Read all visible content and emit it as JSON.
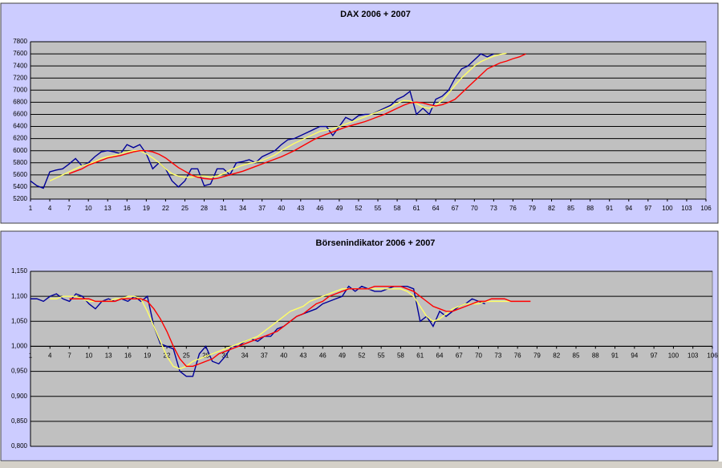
{
  "chart_data": [
    {
      "type": "line",
      "title": "DAX 2006 + 2007",
      "x": [
        1,
        2,
        3,
        4,
        5,
        6,
        7,
        8,
        9,
        10,
        11,
        12,
        13,
        14,
        15,
        16,
        17,
        18,
        19,
        20,
        21,
        22,
        23,
        24,
        25,
        26,
        27,
        28,
        29,
        30,
        31,
        32,
        33,
        34,
        35,
        36,
        37,
        38,
        39,
        40,
        41,
        42,
        43,
        44,
        45,
        46,
        47,
        48,
        49,
        50,
        51,
        52,
        53,
        54,
        55,
        56,
        57,
        58,
        59,
        60,
        61,
        62,
        63,
        64,
        65,
        66,
        67,
        68,
        69,
        70,
        71,
        72,
        73,
        74,
        75,
        76,
        77,
        78
      ],
      "xlim": [
        1,
        106
      ],
      "xticks": [
        1,
        4,
        7,
        10,
        13,
        16,
        19,
        22,
        25,
        28,
        31,
        34,
        37,
        40,
        43,
        46,
        49,
        52,
        55,
        58,
        61,
        64,
        67,
        70,
        73,
        76,
        79,
        82,
        85,
        88,
        91,
        94,
        97,
        100,
        103,
        106
      ],
      "ylim": [
        5200,
        7800
      ],
      "yticks": [
        5200,
        5400,
        5600,
        5800,
        6000,
        6200,
        6400,
        6600,
        6800,
        7000,
        7200,
        7400,
        7600,
        7800
      ],
      "grid": true,
      "series": [
        {
          "color": "#000099",
          "values": [
            5500,
            5420,
            5380,
            5650,
            5680,
            5700,
            5780,
            5870,
            5750,
            5800,
            5900,
            5980,
            6000,
            5980,
            5950,
            6100,
            6050,
            6100,
            5950,
            5700,
            5800,
            5700,
            5500,
            5400,
            5500,
            5700,
            5700,
            5420,
            5450,
            5700,
            5700,
            5600,
            5800,
            5820,
            5850,
            5800,
            5900,
            5950,
            6000,
            6100,
            6180,
            6200,
            6250,
            6300,
            6350,
            6400,
            6400,
            6250,
            6400,
            6550,
            6500,
            6580,
            6600,
            6600,
            6650,
            6700,
            6750,
            6850,
            6900,
            6980,
            6600,
            6700,
            6600,
            6850,
            6900,
            7000,
            7200,
            7350,
            7400,
            7500,
            7600,
            7550,
            7600,
            null,
            null,
            null,
            null,
            null
          ]
        },
        {
          "color": "#ffff66",
          "values": [
            null,
            null,
            null,
            5500,
            5550,
            5600,
            5650,
            5700,
            5750,
            5780,
            5820,
            5870,
            5900,
            5920,
            5950,
            5980,
            6000,
            6000,
            5950,
            5880,
            5800,
            5700,
            5620,
            5580,
            5560,
            5560,
            5580,
            5580,
            5560,
            5580,
            5620,
            5680,
            5720,
            5760,
            5790,
            5810,
            5840,
            5880,
            5930,
            6000,
            6060,
            6120,
            6170,
            6220,
            6270,
            6320,
            6340,
            6360,
            6400,
            6440,
            6480,
            6520,
            6560,
            6600,
            6640,
            6680,
            6720,
            6780,
            6830,
            6820,
            6780,
            6720,
            6700,
            6750,
            6830,
            6950,
            7080,
            7200,
            7300,
            7400,
            7470,
            7520,
            7560,
            7590,
            7610,
            null,
            null,
            null
          ]
        },
        {
          "color": "#ff0000",
          "values": [
            null,
            null,
            null,
            null,
            null,
            null,
            5620,
            5660,
            5700,
            5760,
            5800,
            5840,
            5880,
            5900,
            5920,
            5950,
            5980,
            6000,
            6000,
            5980,
            5940,
            5880,
            5800,
            5720,
            5660,
            5600,
            5560,
            5540,
            5530,
            5540,
            5570,
            5600,
            5630,
            5660,
            5700,
            5740,
            5780,
            5820,
            5860,
            5900,
            5950,
            6000,
            6060,
            6120,
            6180,
            6230,
            6270,
            6310,
            6350,
            6390,
            6420,
            6450,
            6480,
            6520,
            6560,
            6600,
            6650,
            6700,
            6750,
            6790,
            6800,
            6790,
            6760,
            6740,
            6760,
            6800,
            6850,
            6950,
            7050,
            7150,
            7250,
            7350,
            7400,
            7450,
            7480,
            7520,
            7550,
            7600
          ]
        }
      ]
    },
    {
      "type": "line",
      "title": "Börsenindikator 2006 + 2007",
      "x": [
        1,
        2,
        3,
        4,
        5,
        6,
        7,
        8,
        9,
        10,
        11,
        12,
        13,
        14,
        15,
        16,
        17,
        18,
        19,
        20,
        21,
        22,
        23,
        24,
        25,
        26,
        27,
        28,
        29,
        30,
        31,
        32,
        33,
        34,
        35,
        36,
        37,
        38,
        39,
        40,
        41,
        42,
        43,
        44,
        45,
        46,
        47,
        48,
        49,
        50,
        51,
        52,
        53,
        54,
        55,
        56,
        57,
        58,
        59,
        60,
        61,
        62,
        63,
        64,
        65,
        66,
        67,
        68,
        69,
        70,
        71,
        72,
        73,
        74,
        75,
        76,
        77,
        78
      ],
      "xlim": [
        1,
        106
      ],
      "xticks": [
        1,
        4,
        7,
        10,
        13,
        16,
        19,
        22,
        25,
        28,
        31,
        34,
        37,
        40,
        43,
        46,
        49,
        52,
        55,
        58,
        61,
        64,
        67,
        70,
        73,
        76,
        79,
        82,
        85,
        88,
        91,
        94,
        97,
        100,
        103,
        106
      ],
      "ylim": [
        0.8,
        1.15
      ],
      "yticks": [
        {
          "value": 0.8,
          "label": "0,800"
        },
        {
          "value": 0.85,
          "label": "0,850"
        },
        {
          "value": 0.9,
          "label": "0,900"
        },
        {
          "value": 0.95,
          "label": "0,950"
        },
        {
          "value": 1.0,
          "label": "1,000"
        },
        {
          "value": 1.05,
          "label": "1,050"
        },
        {
          "value": 1.1,
          "label": "1,100"
        },
        {
          "value": 1.15,
          "label": "1,150"
        }
      ],
      "x_crosses": 1.0,
      "grid": true,
      "series": [
        {
          "color": "#000099",
          "values": [
            1.095,
            1.095,
            1.09,
            1.1,
            1.105,
            1.095,
            1.09,
            1.105,
            1.1,
            1.085,
            1.075,
            1.09,
            1.095,
            1.09,
            1.095,
            1.09,
            1.1,
            1.09,
            1.1,
            1.04,
            1.005,
            1.0,
            0.995,
            0.95,
            0.94,
            0.94,
            0.985,
            1.0,
            0.97,
            0.965,
            0.98,
            1.0,
            1.0,
            1.01,
            1.015,
            1.01,
            1.02,
            1.02,
            1.035,
            1.04,
            1.05,
            1.06,
            1.065,
            1.07,
            1.075,
            1.085,
            1.09,
            1.095,
            1.1,
            1.12,
            1.11,
            1.12,
            1.115,
            1.11,
            1.11,
            1.115,
            1.12,
            1.12,
            1.12,
            1.115,
            1.05,
            1.06,
            1.04,
            1.07,
            1.06,
            1.07,
            1.08,
            1.085,
            1.095,
            1.09,
            1.085,
            null,
            null,
            null,
            null,
            null,
            null,
            null
          ]
        },
        {
          "color": "#ffff66",
          "values": [
            null,
            null,
            null,
            1.095,
            1.095,
            1.1,
            1.1,
            1.1,
            1.095,
            1.09,
            1.09,
            1.09,
            1.09,
            1.095,
            1.095,
            1.1,
            1.1,
            1.095,
            1.07,
            1.04,
            1.01,
            0.98,
            0.96,
            0.955,
            0.96,
            0.97,
            0.975,
            0.98,
            0.985,
            0.99,
            0.995,
            1.0,
            1.005,
            1.01,
            1.015,
            1.02,
            1.03,
            1.04,
            1.05,
            1.06,
            1.07,
            1.075,
            1.08,
            1.09,
            1.095,
            1.1,
            1.105,
            1.11,
            1.115,
            1.115,
            1.115,
            1.115,
            1.115,
            1.115,
            1.115,
            1.115,
            1.115,
            1.115,
            1.11,
            1.1,
            1.08,
            1.06,
            1.05,
            1.055,
            1.065,
            1.075,
            1.08,
            1.085,
            1.085,
            1.085,
            1.09,
            1.09,
            1.09,
            1.09,
            1.09,
            null,
            null,
            null
          ]
        },
        {
          "color": "#ff0000",
          "values": [
            null,
            null,
            null,
            null,
            null,
            null,
            1.095,
            1.095,
            1.095,
            1.095,
            1.09,
            1.09,
            1.09,
            1.09,
            1.095,
            1.095,
            1.095,
            1.095,
            1.09,
            1.075,
            1.055,
            1.03,
            1.0,
            0.975,
            0.96,
            0.96,
            0.965,
            0.97,
            0.975,
            0.985,
            0.99,
            0.995,
            1.0,
            1.005,
            1.01,
            1.015,
            1.02,
            1.025,
            1.03,
            1.04,
            1.05,
            1.06,
            1.065,
            1.075,
            1.085,
            1.09,
            1.1,
            1.105,
            1.11,
            1.115,
            1.115,
            1.115,
            1.115,
            1.12,
            1.12,
            1.12,
            1.12,
            1.12,
            1.115,
            1.11,
            1.1,
            1.09,
            1.08,
            1.075,
            1.07,
            1.07,
            1.075,
            1.08,
            1.085,
            1.09,
            1.09,
            1.095,
            1.095,
            1.095,
            1.09,
            1.09,
            1.09,
            1.09
          ]
        }
      ]
    }
  ]
}
